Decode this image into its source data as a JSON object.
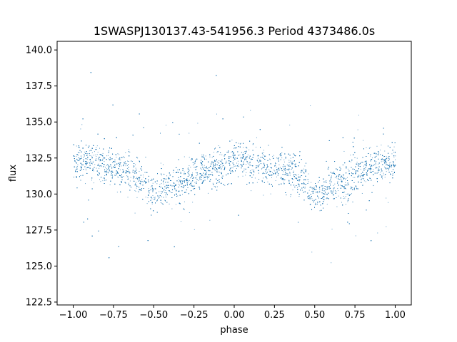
{
  "chart_data": {
    "type": "scatter",
    "title": "1SWASPJ130137.43-541956.3 Period 4373486.0s",
    "xlabel": "phase",
    "ylabel": "flux",
    "xlim": [
      -1.1,
      1.1
    ],
    "ylim": [
      122.3,
      140.6
    ],
    "xticks": [
      -1.0,
      -0.75,
      -0.5,
      -0.25,
      0.0,
      0.25,
      0.5,
      0.75,
      1.0
    ],
    "xtick_labels": [
      "−1.00",
      "−0.75",
      "−0.50",
      "−0.25",
      "0.00",
      "0.25",
      "0.50",
      "0.75",
      "1.00"
    ],
    "yticks": [
      122.5,
      125.0,
      127.5,
      130.0,
      132.5,
      135.0,
      137.5,
      140.0
    ],
    "ytick_labels": [
      "122.5",
      "125.0",
      "127.5",
      "130.0",
      "132.5",
      "135.0",
      "137.5",
      "140.0"
    ],
    "grid": false,
    "marker_color": "#1f77b4",
    "series": [
      {
        "phase": [
          -1.0,
          -0.9,
          -0.8,
          -0.7,
          -0.6,
          -0.5,
          -0.4,
          -0.3,
          -0.2,
          -0.1,
          0.0,
          0.1,
          0.2,
          0.3,
          0.4,
          0.5,
          0.6,
          0.7,
          0.8,
          0.9,
          1.0
        ],
        "flux_mean": [
          132.3,
          132.3,
          132.0,
          131.9,
          131.3,
          130.0,
          130.6,
          130.9,
          131.8,
          132.0,
          132.3,
          132.4,
          131.8,
          131.9,
          131.3,
          130.0,
          130.6,
          130.9,
          131.8,
          132.0,
          132.3
        ]
      }
    ]
  }
}
